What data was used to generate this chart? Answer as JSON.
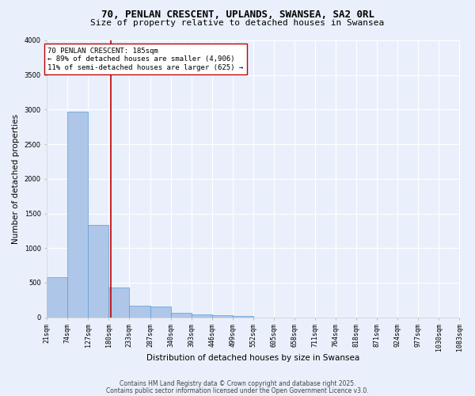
{
  "title_line1": "70, PENLAN CRESCENT, UPLANDS, SWANSEA, SA2 0RL",
  "title_line2": "Size of property relative to detached houses in Swansea",
  "xlabel": "Distribution of detached houses by size in Swansea",
  "ylabel": "Number of detached properties",
  "bin_edges": [
    21,
    74,
    127,
    180,
    233,
    287,
    340,
    393,
    446,
    499,
    552,
    605,
    658,
    711,
    764,
    818,
    871,
    924,
    977,
    1030,
    1083
  ],
  "bar_heights": [
    580,
    2970,
    1340,
    430,
    165,
    155,
    65,
    40,
    30,
    25,
    0,
    0,
    0,
    0,
    0,
    0,
    0,
    0,
    0,
    0
  ],
  "bar_color": "#aec6e8",
  "bar_edge_color": "#5b9bd5",
  "vline_x": 185,
  "vline_color": "#c00000",
  "annotation_text": "70 PENLAN CRESCENT: 185sqm\n← 89% of detached houses are smaller (4,906)\n11% of semi-detached houses are larger (625) →",
  "annotation_box_color": "white",
  "annotation_box_edge": "#c00000",
  "ylim": [
    0,
    4000
  ],
  "yticks": [
    0,
    500,
    1000,
    1500,
    2000,
    2500,
    3000,
    3500,
    4000
  ],
  "bg_color": "#eaf0fb",
  "grid_color": "white",
  "footer_line1": "Contains HM Land Registry data © Crown copyright and database right 2025.",
  "footer_line2": "Contains public sector information licensed under the Open Government Licence v3.0.",
  "title_fontsize": 9,
  "subtitle_fontsize": 8,
  "axis_label_fontsize": 7.5,
  "tick_fontsize": 6,
  "annotation_fontsize": 6.5,
  "footer_fontsize": 5.5
}
